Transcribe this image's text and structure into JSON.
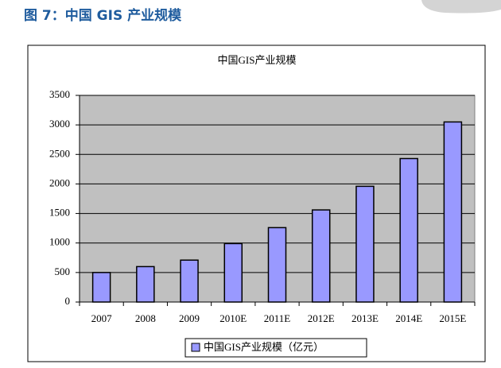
{
  "caption": "图 7：中国 GIS 产业规模",
  "chart_data": {
    "type": "bar",
    "title": "中国GIS产业规模",
    "categories": [
      "2007",
      "2008",
      "2009",
      "2010E",
      "2011E",
      "2012E",
      "2013E",
      "2014E",
      "2015E"
    ],
    "series": [
      {
        "name": "中国GIS产业规模（亿元）",
        "color": "#9999ff",
        "values": [
          500,
          600,
          710,
          990,
          1260,
          1560,
          1960,
          2430,
          3050
        ]
      }
    ],
    "ylim": [
      0,
      3500
    ],
    "yticks": [
      0,
      500,
      1000,
      1500,
      2000,
      2500,
      3000,
      3500
    ],
    "grid": true,
    "legend": "bottom"
  }
}
